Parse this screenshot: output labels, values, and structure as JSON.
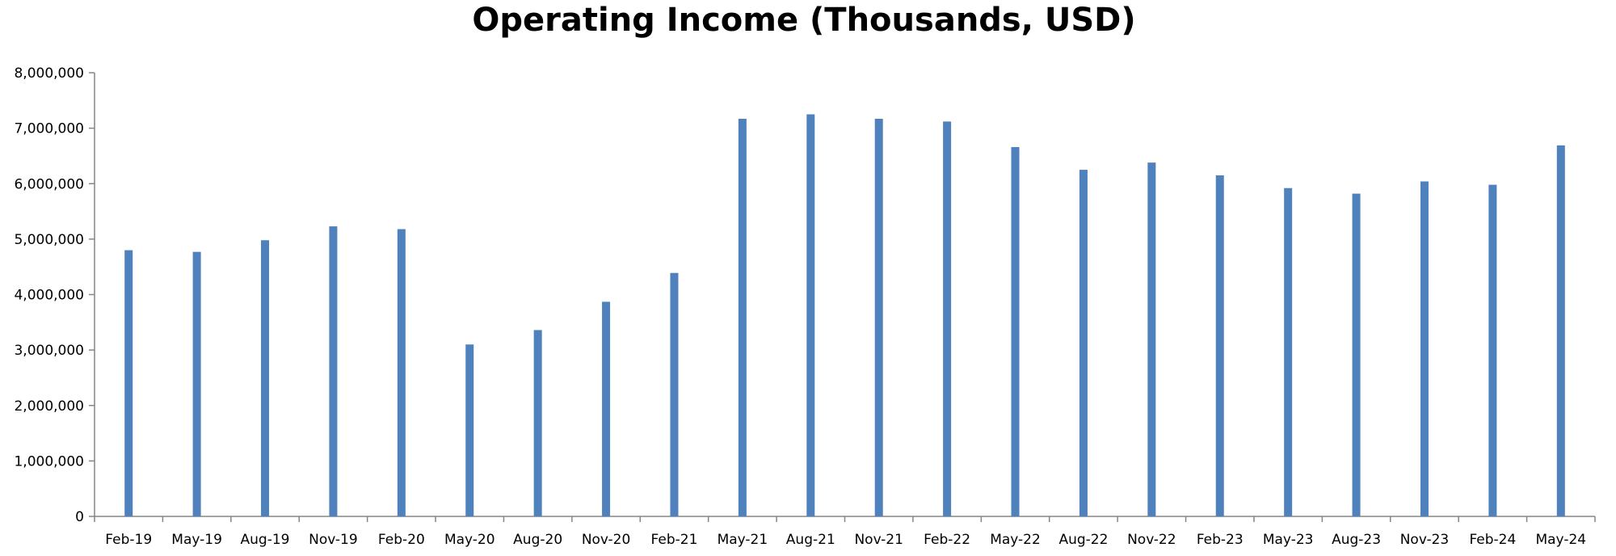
{
  "chart_data": {
    "type": "bar",
    "title": "Operating Income (Thousands, USD)",
    "xlabel": "",
    "ylabel": "",
    "categories": [
      "Feb-19",
      "May-19",
      "Aug-19",
      "Nov-19",
      "Feb-20",
      "May-20",
      "Aug-20",
      "Nov-20",
      "Feb-21",
      "May-21",
      "Aug-21",
      "Nov-21",
      "Feb-22",
      "May-22",
      "Aug-22",
      "Nov-22",
      "Feb-23",
      "May-23",
      "Aug-23",
      "Nov-23",
      "Feb-24",
      "May-24"
    ],
    "values": [
      4800000,
      4770000,
      4980000,
      5230000,
      5180000,
      3100000,
      3360000,
      3870000,
      4390000,
      7170000,
      7250000,
      7170000,
      7120000,
      6660000,
      6250000,
      6380000,
      6150000,
      5920000,
      5820000,
      6040000,
      5980000,
      6690000
    ],
    "ylim": [
      0,
      8000000
    ],
    "yticks": [
      0,
      1000000,
      2000000,
      3000000,
      4000000,
      5000000,
      6000000,
      7000000,
      8000000
    ],
    "ytick_labels": [
      "0",
      "1,000,000",
      "2,000,000",
      "3,000,000",
      "4,000,000",
      "5,000,000",
      "6,000,000",
      "7,000,000",
      "8,000,000"
    ],
    "grid": false,
    "legend": "none",
    "bar_color": "#4F81BD",
    "axis_color": "#868686"
  }
}
